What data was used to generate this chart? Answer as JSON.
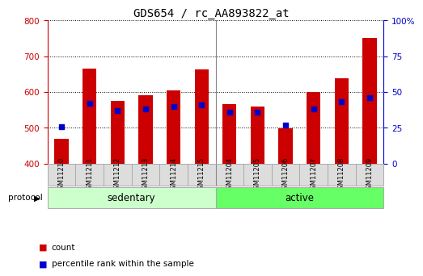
{
  "title": "GDS654 / rc_AA893822_at",
  "categories": [
    "GSM11210",
    "GSM11211",
    "GSM11212",
    "GSM11213",
    "GSM11214",
    "GSM11215",
    "GSM11204",
    "GSM11205",
    "GSM11206",
    "GSM11207",
    "GSM11208",
    "GSM11209"
  ],
  "count_values": [
    469,
    665,
    576,
    592,
    605,
    663,
    566,
    560,
    498,
    600,
    638,
    750
  ],
  "percentile_values": [
    26,
    42,
    37,
    38,
    40,
    41,
    36,
    36,
    27,
    38,
    43,
    46
  ],
  "bar_bottom": 400,
  "ylim_left": [
    400,
    800
  ],
  "ylim_right": [
    0,
    100
  ],
  "yticks_left": [
    400,
    500,
    600,
    700,
    800
  ],
  "yticks_right": [
    0,
    25,
    50,
    75,
    100
  ],
  "groups": [
    {
      "label": "sedentary",
      "n_bars": 6,
      "color": "#ccffcc"
    },
    {
      "label": "active",
      "n_bars": 6,
      "color": "#66ff66"
    }
  ],
  "bar_color": "#cc0000",
  "percentile_color": "#0000cc",
  "left_axis_color": "#cc0000",
  "right_axis_color": "#0000cc",
  "background_color": "#ffffff",
  "plot_bg_color": "#ffffff",
  "grid_color": "#000000",
  "header_bg_color": "#dddddd",
  "protocol_label": "protocol",
  "legend_count_label": "count",
  "legend_percentile_label": "percentile rank within the sample"
}
